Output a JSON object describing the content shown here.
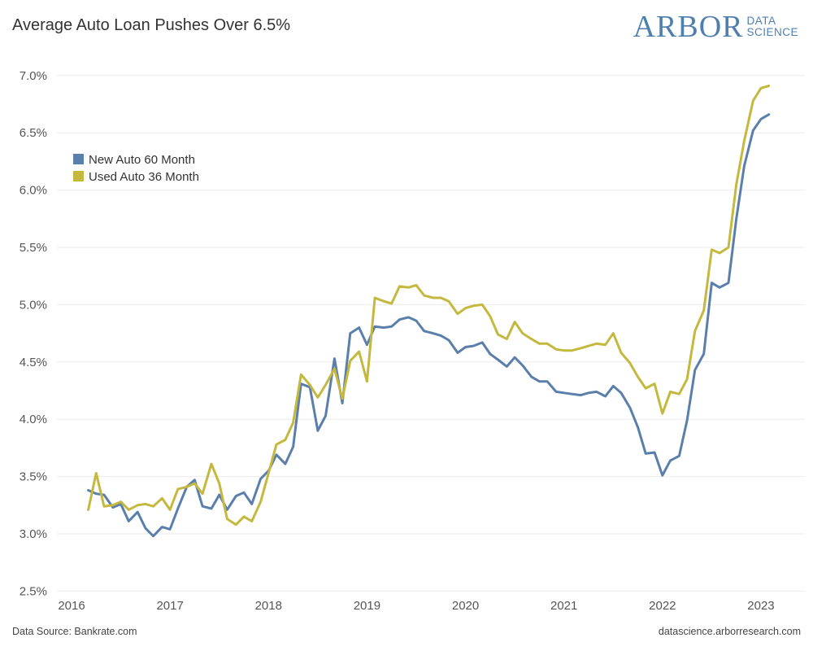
{
  "chart_data": {
    "type": "line",
    "title": "Average Auto Loan Pushes Over 6.5%",
    "xlabel": "",
    "ylabel": "",
    "ylim": [
      2.4,
      7.3
    ],
    "xlim": [
      2015.8,
      2023.4
    ],
    "y_ticks": [
      2.5,
      3.0,
      3.5,
      4.0,
      4.5,
      5.0,
      5.5,
      6.0,
      6.5,
      7.0
    ],
    "y_tick_labels": [
      "2.5%",
      "3.0%",
      "3.5%",
      "4.0%",
      "4.5%",
      "5.0%",
      "5.5%",
      "6.0%",
      "6.5%",
      "7.0%"
    ],
    "x_ticks": [
      2016,
      2017,
      2018,
      2019,
      2020,
      2021,
      2022,
      2023
    ],
    "x_tick_labels": [
      "2016",
      "2017",
      "2018",
      "2019",
      "2020",
      "2021",
      "2022",
      "2023"
    ],
    "grid": true,
    "legend_position": "top-left",
    "series": [
      {
        "name": "New Auto 60 Month",
        "color": "#5b7fab",
        "x": [
          2016.17,
          2016.25,
          2016.33,
          2016.42,
          2016.5,
          2016.58,
          2016.67,
          2016.75,
          2016.83,
          2016.92,
          2017.0,
          2017.08,
          2017.17,
          2017.25,
          2017.33,
          2017.42,
          2017.5,
          2017.58,
          2017.67,
          2017.75,
          2017.83,
          2017.92,
          2018.0,
          2018.08,
          2018.17,
          2018.25,
          2018.33,
          2018.42,
          2018.5,
          2018.58,
          2018.67,
          2018.75,
          2018.83,
          2018.92,
          2019.0,
          2019.08,
          2019.17,
          2019.25,
          2019.33,
          2019.42,
          2019.5,
          2019.58,
          2019.67,
          2019.75,
          2019.83,
          2019.92,
          2020.0,
          2020.08,
          2020.17,
          2020.25,
          2020.33,
          2020.42,
          2020.5,
          2020.58,
          2020.67,
          2020.75,
          2020.83,
          2020.92,
          2021.0,
          2021.08,
          2021.17,
          2021.25,
          2021.33,
          2021.42,
          2021.5,
          2021.58,
          2021.67,
          2021.75,
          2021.83,
          2021.92,
          2022.0,
          2022.08,
          2022.17,
          2022.25,
          2022.33,
          2022.42,
          2022.5,
          2022.58,
          2022.67,
          2022.75,
          2022.83,
          2022.92,
          2023.0,
          2023.08
        ],
        "values": [
          3.38,
          3.35,
          3.34,
          3.23,
          3.26,
          3.11,
          3.19,
          3.05,
          2.98,
          3.06,
          3.04,
          3.22,
          3.41,
          3.47,
          3.24,
          3.22,
          3.34,
          3.21,
          3.33,
          3.36,
          3.26,
          3.48,
          3.55,
          3.69,
          3.61,
          3.76,
          4.31,
          4.28,
          3.9,
          4.03,
          4.53,
          4.14,
          4.75,
          4.8,
          4.65,
          4.81,
          4.8,
          4.81,
          4.87,
          4.89,
          4.86,
          4.77,
          4.75,
          4.73,
          4.69,
          4.58,
          4.63,
          4.64,
          4.67,
          4.57,
          4.52,
          4.46,
          4.54,
          4.47,
          4.37,
          4.33,
          4.33,
          4.24,
          4.23,
          4.22,
          4.21,
          4.23,
          4.24,
          4.2,
          4.29,
          4.23,
          4.1,
          3.93,
          3.7,
          3.71,
          3.51,
          3.64,
          3.68,
          3.99,
          4.43,
          4.57,
          5.19,
          5.15,
          5.19,
          5.75,
          6.21,
          6.52,
          6.62,
          6.66
        ]
      },
      {
        "name": "Used Auto 36 Month",
        "color": "#c4b93e",
        "x": [
          2016.17,
          2016.25,
          2016.33,
          2016.42,
          2016.5,
          2016.58,
          2016.67,
          2016.75,
          2016.83,
          2016.92,
          2017.0,
          2017.08,
          2017.17,
          2017.25,
          2017.33,
          2017.42,
          2017.5,
          2017.58,
          2017.67,
          2017.75,
          2017.83,
          2017.92,
          2018.0,
          2018.08,
          2018.17,
          2018.25,
          2018.33,
          2018.42,
          2018.5,
          2018.58,
          2018.67,
          2018.75,
          2018.83,
          2018.92,
          2019.0,
          2019.08,
          2019.17,
          2019.25,
          2019.33,
          2019.42,
          2019.5,
          2019.58,
          2019.67,
          2019.75,
          2019.83,
          2019.92,
          2020.0,
          2020.08,
          2020.17,
          2020.25,
          2020.33,
          2020.42,
          2020.5,
          2020.58,
          2020.67,
          2020.75,
          2020.83,
          2020.92,
          2021.0,
          2021.08,
          2021.17,
          2021.25,
          2021.33,
          2021.42,
          2021.5,
          2021.58,
          2021.67,
          2021.75,
          2021.83,
          2021.92,
          2022.0,
          2022.08,
          2022.17,
          2022.25,
          2022.33,
          2022.42,
          2022.5,
          2022.58,
          2022.67,
          2022.75,
          2022.83,
          2022.92,
          2023.0,
          2023.08
        ],
        "values": [
          3.21,
          3.53,
          3.24,
          3.25,
          3.28,
          3.21,
          3.25,
          3.26,
          3.24,
          3.31,
          3.21,
          3.39,
          3.41,
          3.44,
          3.35,
          3.61,
          3.44,
          3.13,
          3.08,
          3.15,
          3.11,
          3.28,
          3.53,
          3.78,
          3.82,
          3.97,
          4.39,
          4.3,
          4.19,
          4.3,
          4.44,
          4.18,
          4.51,
          4.59,
          4.33,
          5.06,
          5.03,
          5.01,
          5.16,
          5.15,
          5.17,
          5.08,
          5.06,
          5.06,
          5.03,
          4.92,
          4.97,
          4.99,
          5.0,
          4.9,
          4.74,
          4.7,
          4.85,
          4.75,
          4.7,
          4.66,
          4.66,
          4.61,
          4.6,
          4.6,
          4.62,
          4.64,
          4.66,
          4.65,
          4.75,
          4.58,
          4.49,
          4.37,
          4.27,
          4.31,
          4.05,
          4.24,
          4.22,
          4.35,
          4.77,
          4.95,
          5.48,
          5.45,
          5.5,
          6.05,
          6.43,
          6.78,
          6.89,
          6.91
        ]
      }
    ]
  },
  "logo": {
    "main": "ARBOR",
    "sub_line1": "DATA",
    "sub_line2": "SCIENCE"
  },
  "footer": {
    "source": "Data Source: Bankrate.com",
    "website": "datascience.arborresearch.com"
  }
}
